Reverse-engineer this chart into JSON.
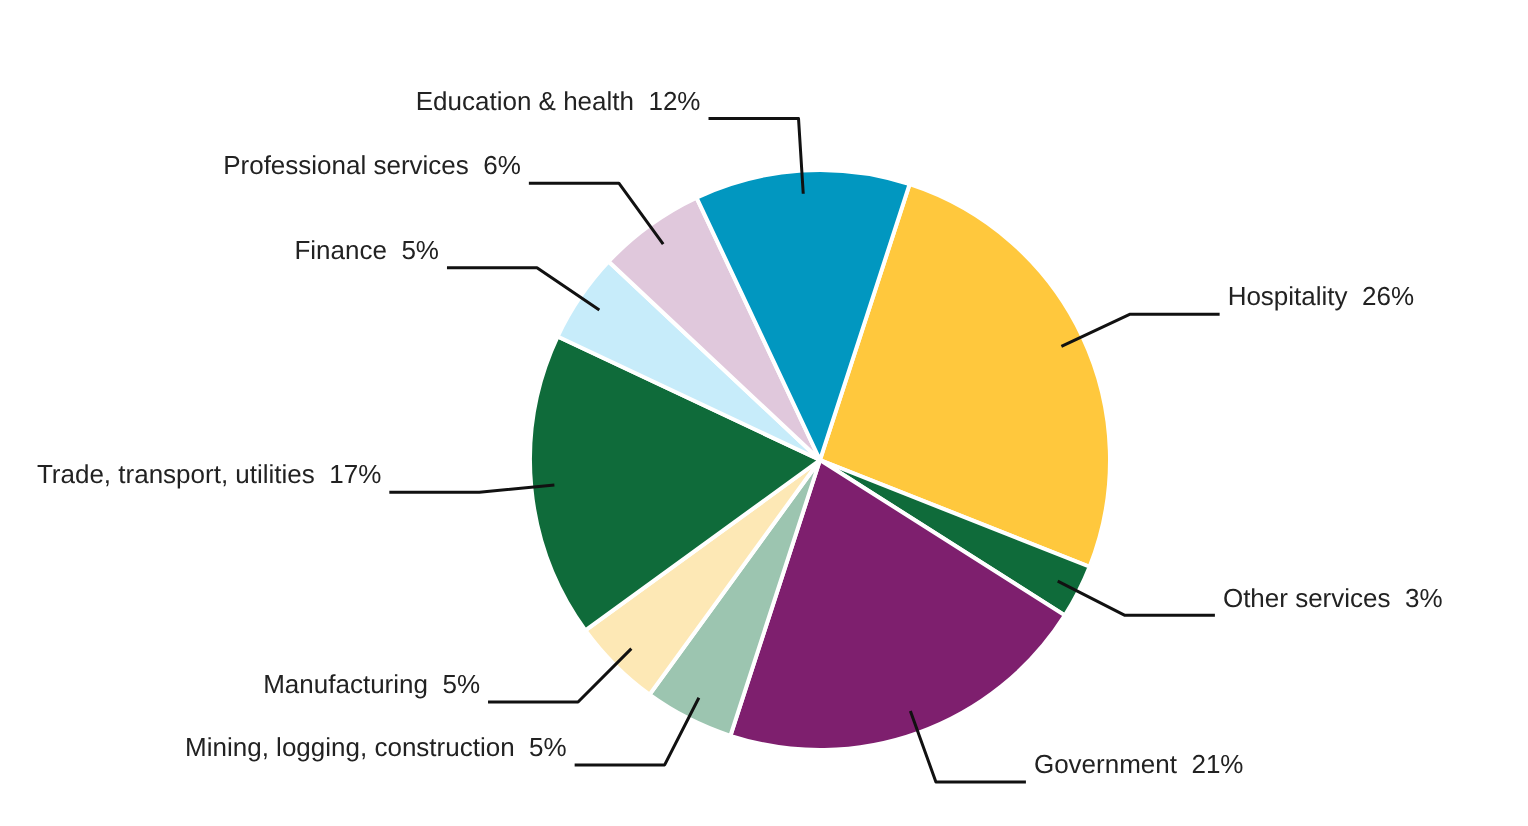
{
  "chart_data": {
    "type": "pie",
    "categories": [
      "Hospitality",
      "Other services",
      "Government",
      "Mining, logging, construction",
      "Manufacturing",
      "Trade, transport, utilities",
      "Finance",
      "Professional services",
      "Education & health"
    ],
    "values": [
      26,
      3,
      21,
      5,
      5,
      17,
      5,
      6,
      12
    ],
    "colors": [
      "#ffc83d",
      "#0f6b3a",
      "#7e1f6e",
      "#9cc5b0",
      "#fde8b5",
      "#0f6b3a",
      "#c7ecfa",
      "#e0c8dc",
      "#0197c0"
    ],
    "value_labels": [
      "26%",
      "3%",
      "21%",
      "5%",
      "5%",
      "17%",
      "5%",
      "6%",
      "12%"
    ],
    "legend": false
  }
}
